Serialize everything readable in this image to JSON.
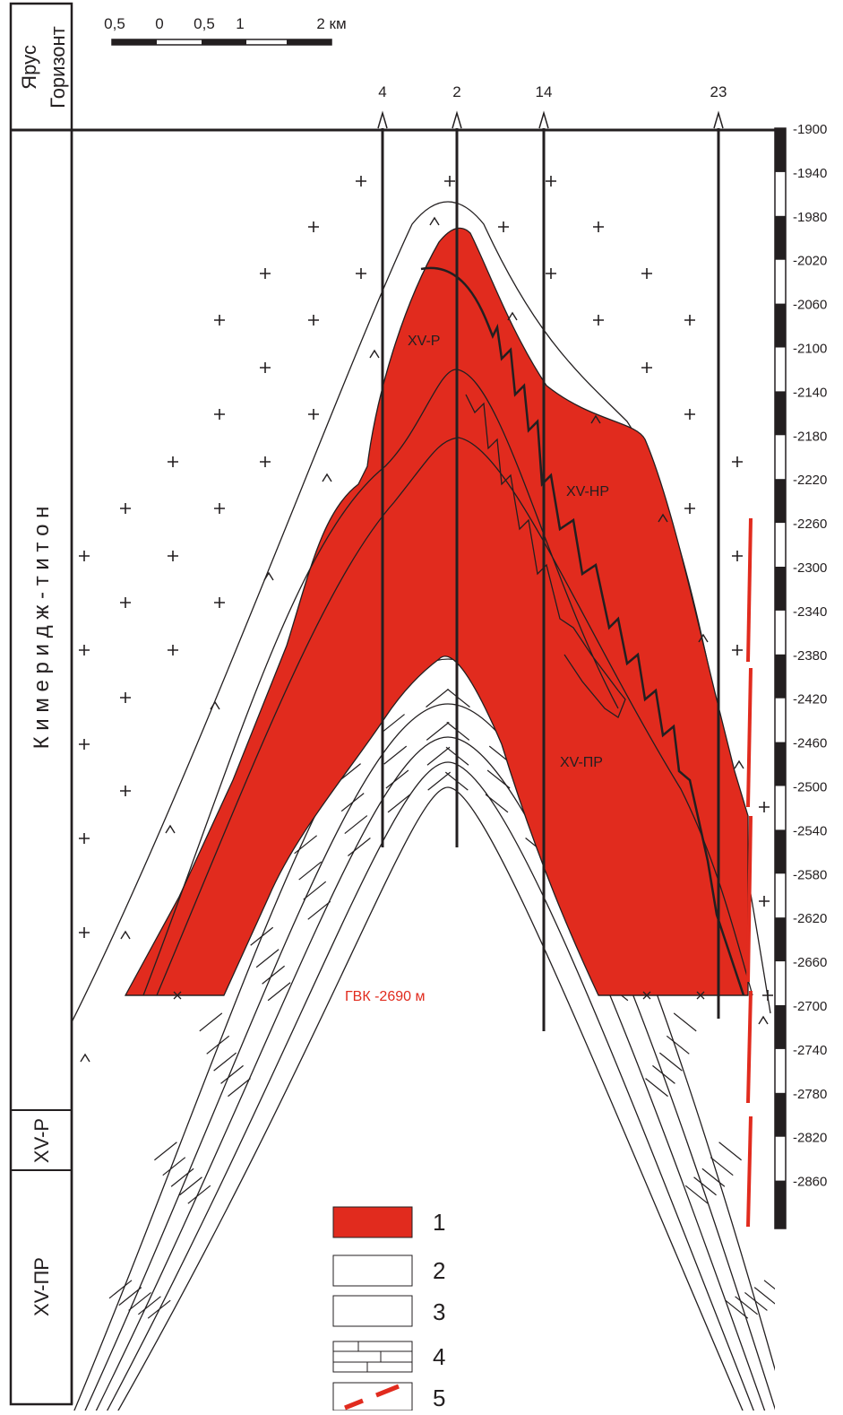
{
  "scale_bar": {
    "labels": [
      "0,5",
      "0",
      "0,5",
      "1",
      "2 км"
    ]
  },
  "columns": {
    "stage": "Ярус",
    "horizon": "Горизонт"
  },
  "stage": "К и м е р и д ж - т и т о н",
  "horizons": [
    "XV-Р",
    "XV-ПР"
  ],
  "wells": [
    "4",
    "2",
    "14",
    "23"
  ],
  "depth_labels": [
    "-1900",
    "-1940",
    "-1980",
    "-2020",
    "-2060",
    "-2100",
    "-2140",
    "-2180",
    "-2220",
    "-2260",
    "-2300",
    "-2340",
    "-2380",
    "-2420",
    "-2460",
    "-2500",
    "-2540",
    "-2580",
    "-2620",
    "-2660",
    "-2700",
    "-2740",
    "-2780",
    "-2820",
    "-2860"
  ],
  "bodies": [
    "XV-Р",
    "XV-НР",
    "XV-ПР"
  ],
  "contact": "ГВК -2690 м",
  "legend": [
    "1",
    "2",
    "3",
    "4",
    "5"
  ]
}
